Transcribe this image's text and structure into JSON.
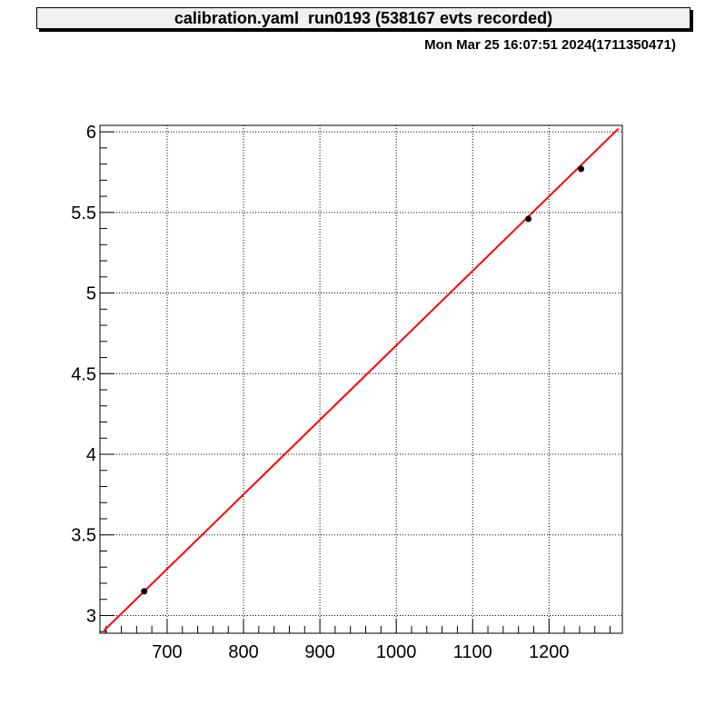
{
  "header": {
    "title": "calibration.yaml  run0193 (538167 evts recorded)",
    "timestamp": "Mon Mar 25 16:07:51 2024(1711350471)"
  },
  "colors": {
    "fit_line": "#ff0000",
    "points": "#000000",
    "title_box_bg": "#f0f0f0"
  },
  "chart_data": {
    "type": "scatter",
    "title": "calibration.yaml  run0193 (538167 evts recorded)",
    "xlim": [
      612,
      1296
    ],
    "ylim": [
      2.89,
      6.04
    ],
    "grid": true,
    "x_ticks": [
      700,
      800,
      900,
      1000,
      1100,
      1200
    ],
    "x_tick_labels": [
      "700",
      "800",
      "900",
      "1000",
      "1100",
      "1200"
    ],
    "y_ticks": [
      3,
      3.5,
      4,
      4.5,
      5,
      5.5,
      6
    ],
    "y_tick_labels": [
      "3",
      "3.5",
      "4",
      "4.5",
      "5",
      "5.5",
      "6"
    ],
    "series": [
      {
        "type": "scatter",
        "x": [
          670,
          1173,
          1242
        ],
        "y": [
          3.15,
          5.46,
          5.77
        ]
      },
      {
        "type": "line",
        "x": [
          617,
          1291
        ],
        "y": [
          2.905,
          6.02
        ]
      }
    ]
  }
}
